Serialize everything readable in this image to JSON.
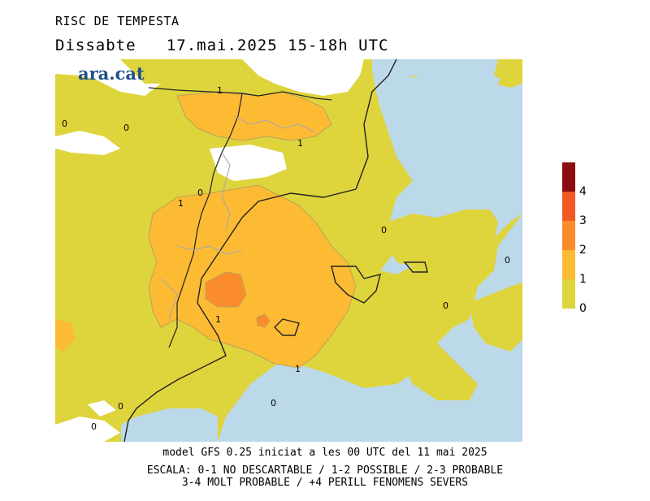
{
  "header": {
    "title": "RISC DE TEMPESTA",
    "subtitle": "Dissabte   17.mai.2025 15-18h UTC"
  },
  "logo": {
    "text": "ara.cat",
    "color": "#1d4f8c"
  },
  "map": {
    "contour_labels": [
      "0",
      "0",
      "1",
      "0",
      "1",
      "1",
      "0",
      "0",
      "0",
      "1",
      "1",
      "0",
      "0",
      "0"
    ],
    "colors": {
      "sea": "#bcd9ea",
      "level_0_1": "#ded43c",
      "level_1_2": "#fdbb34",
      "level_2_3": "#fb8c2c",
      "land_nodata": "#ffffff"
    }
  },
  "legend": {
    "labels": [
      "4",
      "3",
      "2",
      "1",
      "0"
    ],
    "colors": [
      "#8b0d11",
      "#f05a22",
      "#fb8c2c",
      "#fdbb34",
      "#ded43c"
    ]
  },
  "footer": {
    "line1": "model GFS 0.25 iniciat a les 00 UTC del 11 mai 2025",
    "line2": "ESCALA: 0-1 NO DESCARTABLE / 1-2 POSSIBLE / 2-3 PROBABLE",
    "line3": "3-4 MOLT PROBABLE / +4 PERILL FENOMENS SEVERS"
  }
}
